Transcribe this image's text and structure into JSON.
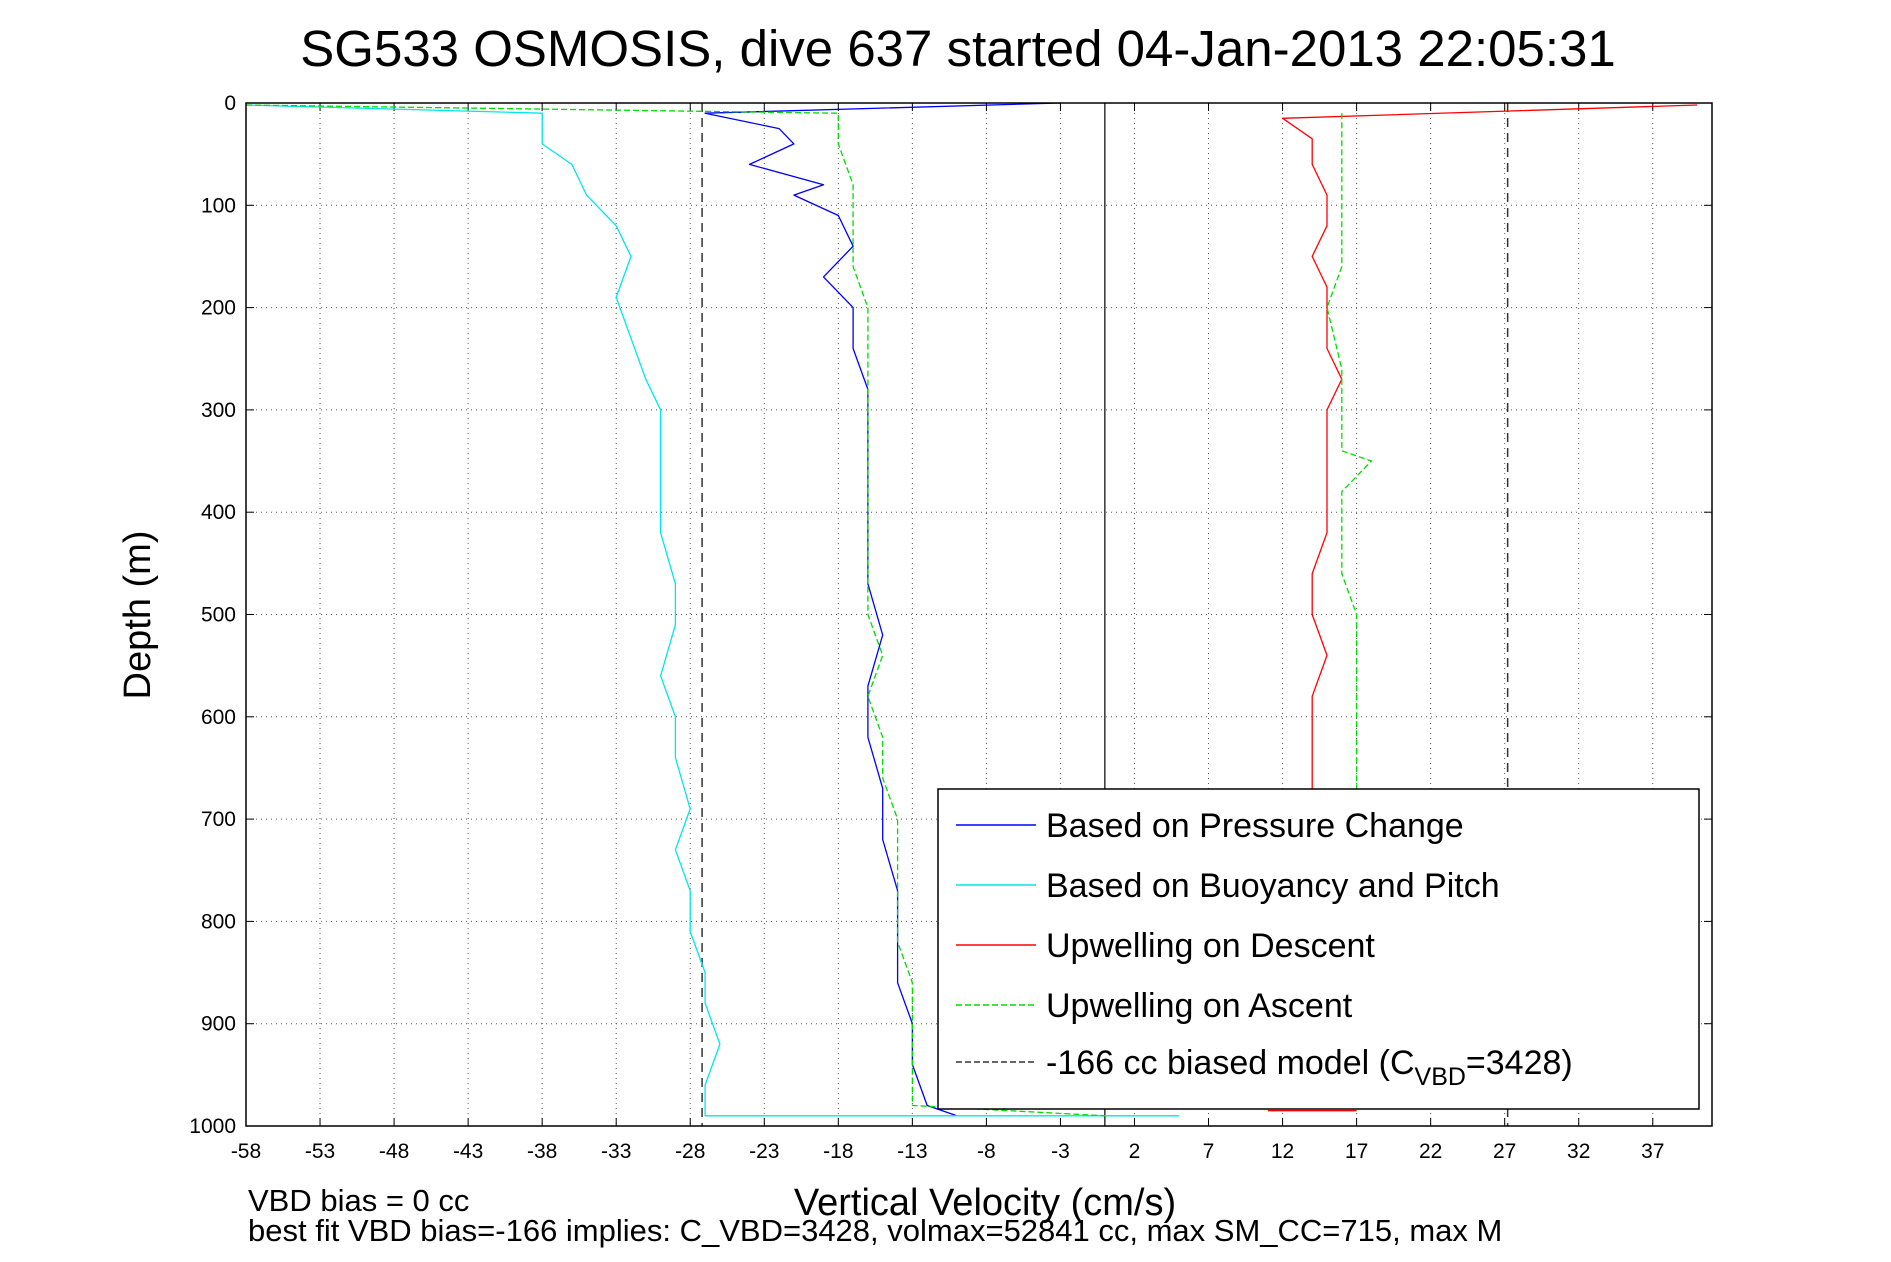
{
  "chart_data": {
    "type": "line",
    "title": "SG533 OSMOSIS, dive 637 started 04-Jan-2013 22:05:31",
    "xlabel": "Vertical Velocity (cm/s)",
    "ylabel": "Depth (m)",
    "xlim": [
      -58,
      41
    ],
    "ylim": [
      0,
      1000
    ],
    "y_reversed": true,
    "grid": true,
    "legend_position": "bottom-right",
    "xticks": [
      "-58",
      "-53",
      "-48",
      "-43",
      "-38",
      "-33",
      "-28",
      "-23",
      "-18",
      "-13",
      "-8",
      "-3",
      "2",
      "7",
      "12",
      "17",
      "22",
      "27",
      "32",
      "37"
    ],
    "yticks": [
      "0",
      "100",
      "200",
      "300",
      "400",
      "500",
      "600",
      "700",
      "800",
      "900",
      "1000"
    ],
    "reference_lines": {
      "solid_x": 0,
      "dashed_x": [
        -27.2,
        27.2
      ]
    },
    "series": [
      {
        "name": "Based on Pressure Change",
        "color": "#0000ff",
        "style": "solid",
        "points": [
          [
            -3,
            0
          ],
          [
            -27,
            10
          ],
          [
            -22,
            25
          ],
          [
            -21,
            40
          ],
          [
            -24,
            60
          ],
          [
            -19,
            80
          ],
          [
            -21,
            90
          ],
          [
            -18,
            110
          ],
          [
            -17,
            140
          ],
          [
            -19,
            170
          ],
          [
            -17,
            200
          ],
          [
            -17,
            240
          ],
          [
            -16,
            280
          ],
          [
            -16,
            330
          ],
          [
            -16,
            380
          ],
          [
            -16,
            420
          ],
          [
            -16,
            470
          ],
          [
            -15,
            520
          ],
          [
            -16,
            570
          ],
          [
            -16,
            620
          ],
          [
            -15,
            670
          ],
          [
            -15,
            720
          ],
          [
            -14,
            770
          ],
          [
            -14,
            820
          ],
          [
            -14,
            860
          ],
          [
            -13,
            900
          ],
          [
            -13,
            940
          ],
          [
            -12,
            980
          ],
          [
            -10,
            990
          ]
        ]
      },
      {
        "name": "Based on Buoyancy and Pitch",
        "color": "#00e5ee",
        "style": "solid",
        "points": [
          [
            -58,
            2
          ],
          [
            -38,
            10
          ],
          [
            -38,
            40
          ],
          [
            -36,
            60
          ],
          [
            -35,
            90
          ],
          [
            -33,
            120
          ],
          [
            -32,
            150
          ],
          [
            -33,
            190
          ],
          [
            -32,
            230
          ],
          [
            -31,
            270
          ],
          [
            -30,
            300
          ],
          [
            -30,
            340
          ],
          [
            -30,
            380
          ],
          [
            -30,
            420
          ],
          [
            -29,
            470
          ],
          [
            -29,
            510
          ],
          [
            -30,
            560
          ],
          [
            -29,
            600
          ],
          [
            -29,
            640
          ],
          [
            -28,
            690
          ],
          [
            -29,
            730
          ],
          [
            -28,
            770
          ],
          [
            -28,
            810
          ],
          [
            -27,
            850
          ],
          [
            -27,
            880
          ],
          [
            -26,
            920
          ],
          [
            -27,
            960
          ],
          [
            -27,
            990
          ],
          [
            5,
            990
          ]
        ]
      },
      {
        "name": "Upwelling on Descent",
        "color": "#ff0000",
        "style": "solid",
        "points": [
          [
            40,
            2
          ],
          [
            12,
            15
          ],
          [
            14,
            35
          ],
          [
            14,
            60
          ],
          [
            15,
            90
          ],
          [
            15,
            120
          ],
          [
            14,
            150
          ],
          [
            15,
            180
          ],
          [
            15,
            210
          ],
          [
            15,
            240
          ],
          [
            16,
            270
          ],
          [
            15,
            300
          ],
          [
            15,
            340
          ],
          [
            15,
            380
          ],
          [
            15,
            420
          ],
          [
            14,
            460
          ],
          [
            14,
            500
          ],
          [
            15,
            540
          ],
          [
            14,
            580
          ],
          [
            14,
            620
          ],
          [
            14,
            660
          ],
          [
            14,
            680
          ]
        ]
      },
      {
        "name": "Upwelling on Ascent",
        "color": "#00dd00",
        "style": "dashed",
        "points": [
          [
            -58,
            2
          ],
          [
            -18,
            10
          ],
          [
            -18,
            40
          ],
          [
            -17,
            80
          ],
          [
            -17,
            120
          ],
          [
            -17,
            160
          ],
          [
            -16,
            200
          ],
          [
            -16,
            260
          ],
          [
            -16,
            300
          ],
          [
            -16,
            340
          ],
          [
            -16,
            380
          ],
          [
            -16,
            420
          ],
          [
            -16,
            460
          ],
          [
            -16,
            500
          ],
          [
            -15,
            540
          ],
          [
            -16,
            580
          ],
          [
            -15,
            620
          ],
          [
            -15,
            660
          ],
          [
            -14,
            700
          ],
          [
            -14,
            740
          ],
          [
            -14,
            780
          ],
          [
            -14,
            820
          ],
          [
            -13,
            860
          ],
          [
            -13,
            900
          ],
          [
            -13,
            940
          ],
          [
            -13,
            980
          ],
          [
            0,
            990
          ]
        ]
      },
      {
        "name": "Upwelling on Ascent",
        "color": "#00dd00",
        "style": "dashed",
        "no_legend": true,
        "points": [
          [
            16,
            10
          ],
          [
            16,
            40
          ],
          [
            16,
            80
          ],
          [
            16,
            120
          ],
          [
            16,
            160
          ],
          [
            15,
            200
          ],
          [
            16,
            260
          ],
          [
            16,
            300
          ],
          [
            16,
            340
          ],
          [
            18,
            350
          ],
          [
            16,
            380
          ],
          [
            16,
            420
          ],
          [
            16,
            460
          ],
          [
            17,
            500
          ],
          [
            17,
            540
          ],
          [
            17,
            580
          ],
          [
            17,
            620
          ],
          [
            17,
            660
          ],
          [
            17,
            680
          ]
        ]
      },
      {
        "name": "Upwelling on Descent",
        "color": "#ff0000",
        "style": "solid",
        "no_legend": true,
        "points": [
          [
            11,
            985
          ],
          [
            17,
            985
          ]
        ]
      }
    ],
    "legend": [
      {
        "label": "Based on Pressure Change",
        "color": "#0000ff",
        "style": "solid"
      },
      {
        "label": "Based on Buoyancy and Pitch",
        "color": "#00e5ee",
        "style": "solid"
      },
      {
        "label": "Upwelling on Descent",
        "color": "#ff0000",
        "style": "solid"
      },
      {
        "label": "Upwelling on Ascent",
        "color": "#00dd00",
        "style": "dashed"
      },
      {
        "label_main": "-166 cc biased model (C",
        "label_sub": "VBD",
        "label_tail": "=3428)",
        "color": "#333333",
        "style": "dashed"
      }
    ]
  },
  "footer": {
    "line1": "VBD bias = 0 cc",
    "line2": "best fit VBD bias=-166 implies: C_VBD=3428, volmax=52841 cc, max SM_CC=715, max M"
  }
}
